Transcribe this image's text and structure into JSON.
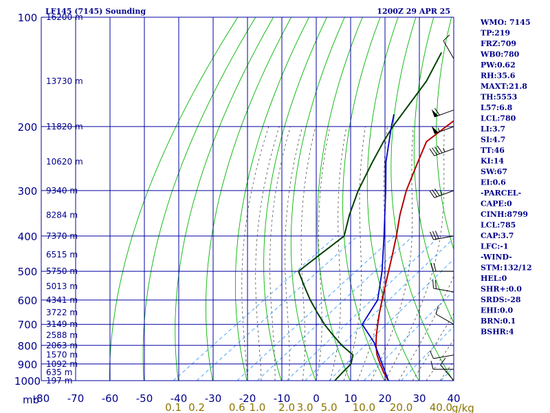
{
  "header": {
    "station": "LF145 (7145) Sounding",
    "time": "1200Z 29 APR 25"
  },
  "colors": {
    "grid": "#0000a0",
    "dry_adiabat": "#00b400",
    "moist_adiabat": "#444444",
    "mixing_ratio": "#1e90ff",
    "temperature": "#b40000",
    "dewpoint": "#004000",
    "parcel": "#0000c8",
    "wind": "#000000",
    "mixing_label": "#8b7500"
  },
  "chart_data": {
    "type": "skew-t log-p",
    "pressure_label": "mb",
    "pressure_ticks": [
      100,
      200,
      300,
      400,
      500,
      600,
      700,
      800,
      900,
      1000
    ],
    "pressure_range": [
      1000,
      100
    ],
    "temperature_ticks": [
      -80,
      -70,
      -60,
      -50,
      -40,
      -30,
      -20,
      -10,
      0,
      10,
      20,
      30,
      40
    ],
    "mixing_ratio_label": "g/kg",
    "mixing_ratio_ticks": [
      "0.1",
      "0.2",
      "0.6",
      "1.0",
      "2.0",
      "3.0",
      "5.0",
      "10.0",
      "20.0",
      "40.0"
    ],
    "height_labels": [
      {
        "p": 100,
        "label": "16200 m"
      },
      {
        "p": 150,
        "label": "13730 m"
      },
      {
        "p": 200,
        "label": "11820 m"
      },
      {
        "p": 250,
        "label": "10620 m"
      },
      {
        "p": 300,
        "label": "9340 m"
      },
      {
        "p": 350,
        "label": "8284 m"
      },
      {
        "p": 400,
        "label": "7370 m"
      },
      {
        "p": 450,
        "label": "6515 m"
      },
      {
        "p": 500,
        "label": "5750 m"
      },
      {
        "p": 550,
        "label": "5013 m"
      },
      {
        "p": 600,
        "label": "4341 m"
      },
      {
        "p": 650,
        "label": "3722 m"
      },
      {
        "p": 700,
        "label": "3149 m"
      },
      {
        "p": 750,
        "label": "2588 m"
      },
      {
        "p": 800,
        "label": "2063 m"
      },
      {
        "p": 850,
        "label": "1570 m"
      },
      {
        "p": 900,
        "label": "1092 m"
      },
      {
        "p": 950,
        "label": "635 m"
      },
      {
        "p": 1000,
        "label": "197 m"
      }
    ],
    "series": [
      {
        "key": "temperature",
        "points": [
          {
            "p": 1000,
            "t": 21.0
          },
          {
            "p": 950,
            "t": 16.5
          },
          {
            "p": 900,
            "t": 12.2
          },
          {
            "p": 850,
            "t": 7.8
          },
          {
            "p": 800,
            "t": 3.8
          },
          {
            "p": 750,
            "t": 0.0
          },
          {
            "p": 700,
            "t": -3.8
          },
          {
            "p": 650,
            "t": -7.8
          },
          {
            "p": 600,
            "t": -11.9
          },
          {
            "p": 550,
            "t": -16.3
          },
          {
            "p": 500,
            "t": -21.1
          },
          {
            "p": 450,
            "t": -26.4
          },
          {
            "p": 400,
            "t": -32.4
          },
          {
            "p": 350,
            "t": -39.5
          },
          {
            "p": 300,
            "t": -47.0
          },
          {
            "p": 250,
            "t": -54.7
          },
          {
            "p": 220,
            "t": -60.0
          },
          {
            "p": 200,
            "t": -60.1
          },
          {
            "p": 150,
            "t": -59.7
          },
          {
            "p": 100,
            "t": -60.1
          }
        ]
      },
      {
        "key": "dewpoint",
        "points": [
          {
            "p": 1000,
            "t": 5.4
          },
          {
            "p": 950,
            "t": 4.5
          },
          {
            "p": 900,
            "t": 3.7
          },
          {
            "p": 850,
            "t": 0.8
          },
          {
            "p": 800,
            "t": -6.1
          },
          {
            "p": 750,
            "t": -12.6
          },
          {
            "p": 700,
            "t": -19.3
          },
          {
            "p": 650,
            "t": -25.9
          },
          {
            "p": 600,
            "t": -32.8
          },
          {
            "p": 550,
            "t": -39.8
          },
          {
            "p": 500,
            "t": -47.3
          },
          {
            "p": 450,
            "t": -47.5
          },
          {
            "p": 400,
            "t": -47.6
          },
          {
            "p": 350,
            "t": -54.2
          },
          {
            "p": 300,
            "t": -61.0
          },
          {
            "p": 250,
            "t": -67.9
          },
          {
            "p": 220,
            "t": -72.5
          },
          {
            "p": 200,
            "t": -75.6
          },
          {
            "p": 150,
            "t": -83.3
          },
          {
            "p": 125,
            "t": -90.0
          }
        ]
      },
      {
        "key": "parcel",
        "points": [
          {
            "p": 1000,
            "t": 21.0
          },
          {
            "p": 785,
            "t": 2.1
          },
          {
            "p": 700,
            "t": -8.3
          },
          {
            "p": 600,
            "t": -13.2
          },
          {
            "p": 500,
            "t": -23.0
          },
          {
            "p": 400,
            "t": -36.0
          },
          {
            "p": 300,
            "t": -53.0
          },
          {
            "p": 250,
            "t": -64.0
          },
          {
            "p": 200,
            "t": -76.0
          },
          {
            "p": 185,
            "t": -80.0
          }
        ]
      }
    ],
    "wind_barbs": [
      {
        "p": 130,
        "dir": 330,
        "kt": 10
      },
      {
        "p": 180,
        "dir": 250,
        "kt": 60
      },
      {
        "p": 200,
        "dir": 250,
        "kt": 55
      },
      {
        "p": 230,
        "dir": 250,
        "kt": 45
      },
      {
        "p": 300,
        "dir": 250,
        "kt": 35
      },
      {
        "p": 400,
        "dir": 260,
        "kt": 30
      },
      {
        "p": 500,
        "dir": 270,
        "kt": 20
      },
      {
        "p": 570,
        "dir": 280,
        "kt": 20
      },
      {
        "p": 700,
        "dir": 300,
        "kt": 10
      },
      {
        "p": 850,
        "dir": 260,
        "kt": 10
      },
      {
        "p": 930,
        "dir": 270,
        "kt": 10
      },
      {
        "p": 1000,
        "dir": 320,
        "kt": 10
      }
    ]
  },
  "indices": [
    "WMO: 7145",
    "TP:219",
    "FRZ:709",
    "WB0:780",
    "PW:0.62",
    "RH:35.6",
    "MAXT:21.8",
    "TH:5553",
    "L57:6.8",
    "LCL:780",
    "LI:3.7",
    "SI:4.7",
    "TT:46",
    "KI:14",
    "SW:67",
    "EI:0.6",
    "-PARCEL-",
    "CAPE:0",
    "CINH:8799",
    "LCL:785",
    "CAP:3.7",
    "LFC:-1",
    "-WIND-",
    "STM:132/12",
    "HEL:0",
    "SHR+:0.0",
    "SRDS:-28",
    "EHI:0.0",
    "BRN:0.1",
    "BSHR:4"
  ]
}
